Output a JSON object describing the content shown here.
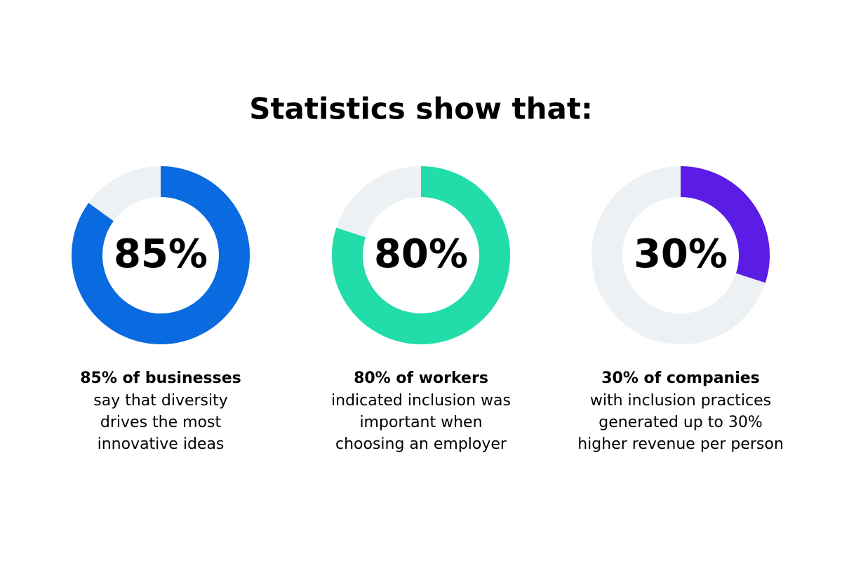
{
  "title": "Statistics show that:",
  "chart_data": [
    {
      "type": "donut",
      "values": [
        85
      ],
      "value_labels": [
        "85%"
      ],
      "ylim": [
        0,
        100
      ],
      "color": "#0a6ae0",
      "track_color": "#edf1f4",
      "caption_bold": "85% of businesses",
      "caption": [
        "say that diversity",
        "drives the most",
        "innovative ideas"
      ]
    },
    {
      "type": "donut",
      "values": [
        80
      ],
      "value_labels": [
        "80%"
      ],
      "ylim": [
        0,
        100
      ],
      "color": "#22dcaa",
      "track_color": "#edf1f4",
      "caption_bold": "80% of workers",
      "caption": [
        "indicated inclusion was",
        "important when",
        "choosing an employer"
      ]
    },
    {
      "type": "donut",
      "values": [
        30
      ],
      "value_labels": [
        "30%"
      ],
      "ylim": [
        0,
        100
      ],
      "color": "#5b1de6",
      "track_color": "#edf1f4",
      "caption_bold": "30% of companies",
      "caption": [
        "with inclusion practices",
        "generated up to 30%",
        "higher revenue per person"
      ]
    }
  ]
}
